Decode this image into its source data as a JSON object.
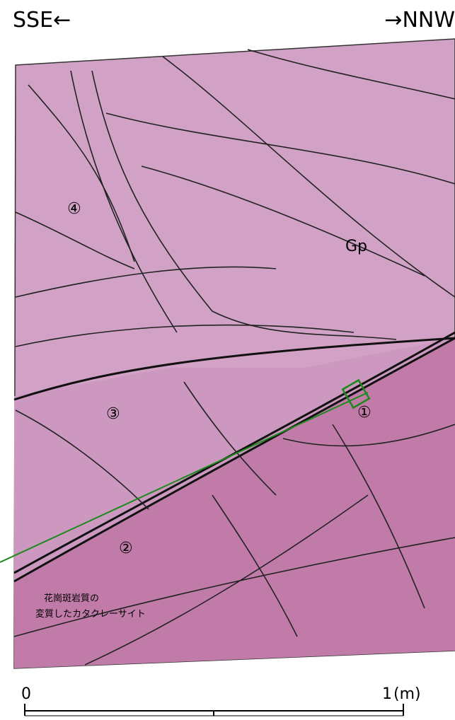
{
  "header": {
    "left": "SSE←",
    "right": "→NNW"
  },
  "labels": {
    "unit": "Gp",
    "zone_4": "④",
    "zone_3": "③",
    "zone_2": "②",
    "zone_1": "①"
  },
  "caption": {
    "line1": "花崗斑岩質の",
    "line2": "変質したカタクレーサイト"
  },
  "scale": {
    "start": "0",
    "end": "1",
    "unit": "(m)"
  }
}
